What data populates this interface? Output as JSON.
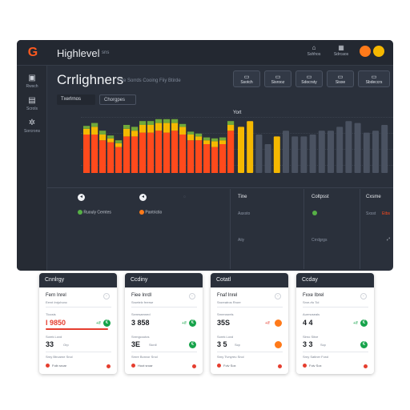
{
  "app": {
    "title": "Highlevel",
    "subtitle": "sns",
    "logo": "G"
  },
  "topbar": {
    "icons": [
      {
        "icon": "bell-icon",
        "glyph": "⌂",
        "label": "Sshhos"
      },
      {
        "icon": "grid-icon",
        "glyph": "▦",
        "label": "Sdrcaos"
      }
    ]
  },
  "sidebar": {
    "items": [
      {
        "icon": "home-icon",
        "glyph": "▣",
        "label": "Rwsch"
      },
      {
        "icon": "calendar-icon",
        "glyph": "▤",
        "label": "Scrols"
      },
      {
        "icon": "settings-icon",
        "glyph": "✲",
        "label": "Sorcrons"
      }
    ]
  },
  "page": {
    "title": "Crrlighners",
    "subtitle": "Pxe Sorrds Cooing Fiiy Btirde"
  },
  "actions": [
    {
      "glyph": "▭",
      "label": "Ssotch"
    },
    {
      "glyph": "▭",
      "label": "Sisrooz"
    },
    {
      "glyph": "▭",
      "label": "Sdocrsty"
    },
    {
      "glyph": "▭",
      "label": "Sisxe"
    },
    {
      "glyph": "▭",
      "label": "Sbdeccrs"
    }
  ],
  "tabs": [
    {
      "label": "Txerlrnos"
    },
    {
      "label": "Chorgpes"
    }
  ],
  "chart_data": [
    {
      "type": "bar",
      "title": "",
      "series": [
        {
          "values": [
            40,
            40,
            34,
            32,
            27,
            38,
            38,
            42,
            42,
            44,
            42,
            44,
            40,
            34,
            34,
            30,
            27,
            30,
            44
          ]
        },
        {
          "values": [
            6,
            8,
            6,
            4,
            4,
            8,
            6,
            8,
            8,
            8,
            10,
            8,
            8,
            6,
            4,
            4,
            6,
            4,
            6
          ]
        },
        {
          "values": [
            3,
            4,
            4,
            3,
            3,
            4,
            4,
            4,
            4,
            4,
            4,
            4,
            3,
            3,
            3,
            3,
            3,
            3,
            4
          ]
        }
      ],
      "colors": [
        "#ff4a1c",
        "#f5b800",
        "#6fa83a"
      ]
    },
    {
      "type": "bar",
      "title": "Yort",
      "values": [
        48,
        54,
        40,
        30,
        38,
        44,
        38,
        38,
        40,
        44,
        44,
        48,
        54,
        52,
        42,
        44,
        50
      ],
      "colors": [
        "#f5b800",
        "#f5b800",
        "#4a5261",
        "#4a5261",
        "#f5b800",
        "#4a5261",
        "#4a5261",
        "#4a5261",
        "#4a5261",
        "#4a5261",
        "#4a5261",
        "#4a5261",
        "#4a5261",
        "#4a5261",
        "#4a5261",
        "#4a5261",
        "#4a5261"
      ]
    }
  ],
  "legend": {
    "left": [
      {
        "label": "Ruouly Cerntes",
        "color": "#56b046"
      },
      {
        "label": "Pantrictio",
        "color": "#ff7a1a"
      }
    ],
    "mid_head": "Tine",
    "mid_items": [
      "Aaxsto",
      "Aiiy"
    ],
    "right_head": "Coltpsst",
    "right_items": [
      "Crrdgrgs"
    ],
    "far_head": "Cxsme",
    "far_value": "Sxsst",
    "far_badge": "Etbs"
  },
  "cards": [
    {
      "title": "Cnnlrgy",
      "row1": "Fern Inrel",
      "row1_sub": "Eerxt Inrjuhonc",
      "label2": "Tloosis",
      "value2": "I 9850",
      "pct2": "+/f",
      "row3": "Sorek Loxd",
      "value3": "33",
      "sub3": "Orp",
      "footer": "Srny Btrcarne Snol",
      "footer2": "Foib sroar"
    },
    {
      "title": "Ccdiny",
      "row1": "Fiee Inrdl",
      "row1_sub": "Sroetelx frrerse",
      "label2": "Sxmrsamned",
      "value2": "3 858",
      "pct2": "+/f",
      "row3": "Snrngcoutos",
      "value3": "3E",
      "sub3": "Sicnll",
      "footer": "Srnre Bonvor Snol",
      "footer2": "Hoot sroar"
    },
    {
      "title": "Cotatl",
      "row1": "Fnaf Inrel",
      "row1_sub": "Sroreatros Rroer",
      "label2": "Srnerosrels",
      "value2": "35S",
      "pct2": "+/f",
      "row3": "Sorek Loxd",
      "value3": "3 5",
      "sub3": "Scp",
      "footer": "Srny Tivnyreu Snol",
      "footer2": "Folv Sox"
    },
    {
      "title": "Ccday",
      "row1": "Fxxe Ibrel",
      "row1_sub": "Srxe-rfo Tol",
      "label2": "Aurmoseals",
      "value2": "4 4",
      "pct2": "+/f",
      "row3": "Slrno Sitxe",
      "value3": "3 3",
      "sub3": "Scp",
      "footer": "Srny Satlner Forol",
      "footer2": "Folv Sox"
    }
  ]
}
